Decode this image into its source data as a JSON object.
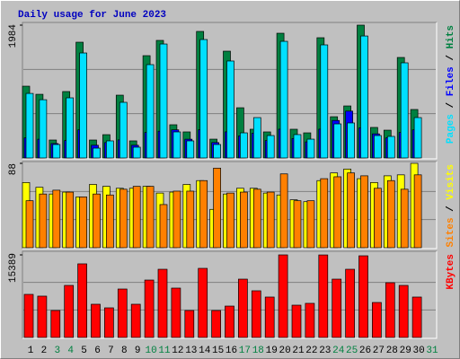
{
  "chart_data": [
    {
      "type": "bar",
      "title": "Daily usage for June 2023",
      "ylim": [
        0,
        1984
      ],
      "yticks": [
        1984
      ],
      "legend_separator": " / ",
      "series": [
        {
          "name": "Hits",
          "color": "#008040",
          "values": [
            1072,
            951,
            268,
            992,
            1729,
            268,
            348,
            938,
            255,
            1528,
            1756,
            496,
            389,
            1890,
            281,
            1595,
            750,
            429,
            389,
            1863,
            429,
            375,
            1796,
            616,
            777,
            1984,
            456,
            415,
            1501,
            724,
            null
          ]
        },
        {
          "name": "Files",
          "color": "#0000ff",
          "values": [
            300,
            280,
            215,
            260,
            420,
            190,
            230,
            270,
            190,
            380,
            400,
            420,
            280,
            420,
            230,
            390,
            330,
            370,
            260,
            430,
            290,
            240,
            430,
            560,
            700,
            450,
            360,
            300,
            380,
            420,
            null
          ]
        },
        {
          "name": "Pages",
          "color": "#00e0ff",
          "values": [
            964,
            870,
            201,
            898,
            1568,
            147,
            255,
            831,
            161,
            1394,
            1702,
            389,
            255,
            1769,
            201,
            1448,
            375,
            603,
            335,
            1742,
            349,
            281,
            1689,
            509,
            523,
            1822,
            335,
            322,
            1421,
            603,
            null
          ]
        }
      ]
    },
    {
      "type": "bar",
      "ylim": [
        0,
        88
      ],
      "yticks": [
        88
      ],
      "legend_separator": " / ",
      "series": [
        {
          "name": "Visits",
          "color": "#ffff00",
          "values": [
            68,
            63,
            56,
            58,
            53,
            66,
            64,
            62,
            62,
            64,
            57,
            58,
            66,
            70,
            40,
            56,
            62,
            62,
            57,
            55,
            50,
            48,
            70,
            78,
            82,
            72,
            68,
            75,
            76,
            88,
            null
          ]
        },
        {
          "name": "Sites",
          "color": "#ff8000",
          "values": [
            49,
            56,
            60,
            58,
            53,
            56,
            55,
            61,
            64,
            64,
            45,
            59,
            59,
            70,
            83,
            57,
            58,
            61,
            58,
            77,
            49,
            49,
            72,
            74,
            78,
            75,
            62,
            70,
            61,
            76,
            null
          ]
        }
      ]
    },
    {
      "type": "bar",
      "ylim": [
        0,
        15389
      ],
      "yticks": [
        15389
      ],
      "categories": [
        "1",
        "2",
        "3",
        "4",
        "5",
        "6",
        "7",
        "8",
        "9",
        "10",
        "11",
        "12",
        "13",
        "14",
        "15",
        "16",
        "17",
        "18",
        "19",
        "20",
        "21",
        "22",
        "23",
        "24",
        "25",
        "26",
        "27",
        "28",
        "29",
        "30",
        "31"
      ],
      "category_colors": [
        "#000000",
        "#000000",
        "#008040",
        "#008040",
        "#000000",
        "#000000",
        "#000000",
        "#000000",
        "#000000",
        "#008040",
        "#008040",
        "#000000",
        "#000000",
        "#000000",
        "#000000",
        "#000000",
        "#008040",
        "#008040",
        "#000000",
        "#000000",
        "#000000",
        "#000000",
        "#000000",
        "#008040",
        "#008040",
        "#000000",
        "#000000",
        "#000000",
        "#000000",
        "#000000",
        "#008040"
      ],
      "series": [
        {
          "name": "KBytes",
          "color": "#ff0000",
          "values": [
            8030,
            7700,
            5020,
            9700,
            13720,
            6190,
            5520,
            9030,
            6190,
            10700,
            12710,
            9200,
            5020,
            12880,
            5020,
            5850,
            10870,
            8700,
            7530,
            15389,
            6020,
            6360,
            15380,
            10870,
            12710,
            15220,
            6520,
            10200,
            9700,
            7530,
            null
          ]
        }
      ]
    }
  ]
}
